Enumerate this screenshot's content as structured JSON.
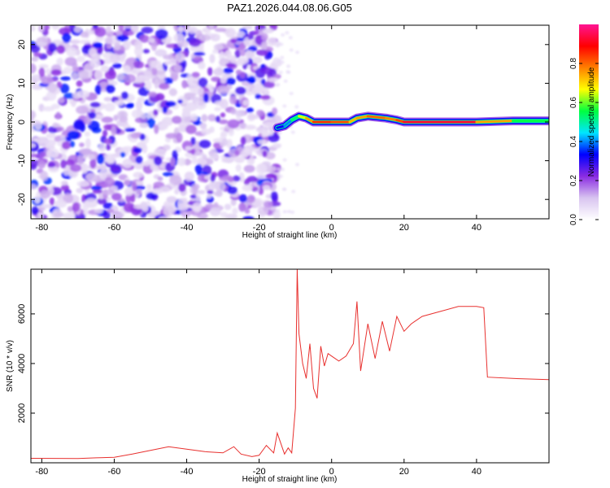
{
  "title": "PAZ1.2026.044.08.06.G05",
  "colorbar": {
    "label": "Normalized spectral amplitude",
    "ticks": [
      "0.0",
      "0.2",
      "0.4",
      "0.6",
      "0.8"
    ],
    "tick_values": [
      0.0,
      0.2,
      0.4,
      0.6,
      0.8
    ],
    "range": [
      0,
      1
    ],
    "colormap": [
      "#ffffff",
      "#d8c4f0",
      "#8a2be2",
      "#0000ff",
      "#00e5ff",
      "#00ff40",
      "#ffff00",
      "#ff8000",
      "#ff0000",
      "#ff1493"
    ]
  },
  "chart_data": [
    {
      "type": "heatmap",
      "title": "PAZ1.2026.044.08.06.G05",
      "xlabel": "Height of straight line (km)",
      "ylabel": "Frequency (Hz)",
      "xlim": [
        -83,
        60
      ],
      "ylim": [
        -25,
        25
      ],
      "xticks": [
        -80,
        -60,
        -40,
        -20,
        0,
        20,
        40
      ],
      "yticks": [
        -20,
        -10,
        0,
        10,
        20
      ],
      "xtick_labels": [
        "-80",
        "-60",
        "-40",
        "-20",
        "0",
        "20",
        "40"
      ],
      "ytick_labels": [
        "-20",
        "-10",
        "0",
        "10",
        "20"
      ],
      "noise_region_x": [
        -83,
        -15
      ],
      "noise_level": 0.1,
      "signal_track": {
        "x": [
          -15,
          -13,
          -11,
          -9,
          -7,
          -5,
          0,
          5,
          7,
          10,
          15,
          18,
          20,
          30,
          40,
          50,
          60
        ],
        "freq": [
          -1.5,
          -1,
          0.5,
          1.5,
          1,
          0,
          0,
          0,
          1,
          1.5,
          1,
          0.5,
          0,
          0,
          0,
          0.3,
          0.3
        ],
        "amplitude": [
          0.3,
          0.35,
          0.45,
          0.6,
          0.7,
          0.8,
          0.9,
          0.75,
          0.7,
          0.8,
          0.8,
          0.75,
          0.9,
          0.95,
          0.9,
          0.6,
          0.5
        ]
      }
    },
    {
      "type": "line",
      "xlabel": "Height of straight line (km)",
      "ylabel": "SNR (10 * v/v)",
      "xlim": [
        -83,
        60
      ],
      "ylim": [
        0,
        7800
      ],
      "xticks": [
        -80,
        -60,
        -40,
        -20,
        0,
        20,
        40
      ],
      "yticks": [
        2000,
        4000,
        6000
      ],
      "xtick_labels": [
        "-80",
        "-60",
        "-40",
        "-20",
        "0",
        "20",
        "40"
      ],
      "ytick_labels": [
        "2000",
        "4000",
        "6000"
      ],
      "color": "#e8302e",
      "x": [
        -83,
        -70,
        -65,
        -60,
        -55,
        -50,
        -45,
        -40,
        -35,
        -30,
        -27,
        -25,
        -22,
        -20,
        -18,
        -16,
        -15,
        -13,
        -12,
        -11,
        -10,
        -9.5,
        -9,
        -8,
        -7,
        -6,
        -5,
        -4,
        -3,
        -2,
        -1,
        0,
        2,
        4,
        6,
        7,
        8,
        10,
        12,
        14,
        16,
        18,
        20,
        22,
        25,
        30,
        35,
        40,
        42,
        43,
        50,
        60
      ],
      "y": [
        180,
        170,
        200,
        220,
        350,
        500,
        650,
        550,
        450,
        400,
        650,
        350,
        250,
        300,
        700,
        400,
        1200,
        350,
        600,
        400,
        2200,
        7800,
        5200,
        4000,
        3400,
        4800,
        3000,
        2600,
        4700,
        3900,
        4400,
        4300,
        4100,
        4300,
        4800,
        6500,
        3700,
        5600,
        4200,
        5700,
        4500,
        5900,
        5300,
        5600,
        5900,
        6100,
        6300,
        6300,
        6250,
        3450,
        3400,
        3350
      ]
    }
  ]
}
